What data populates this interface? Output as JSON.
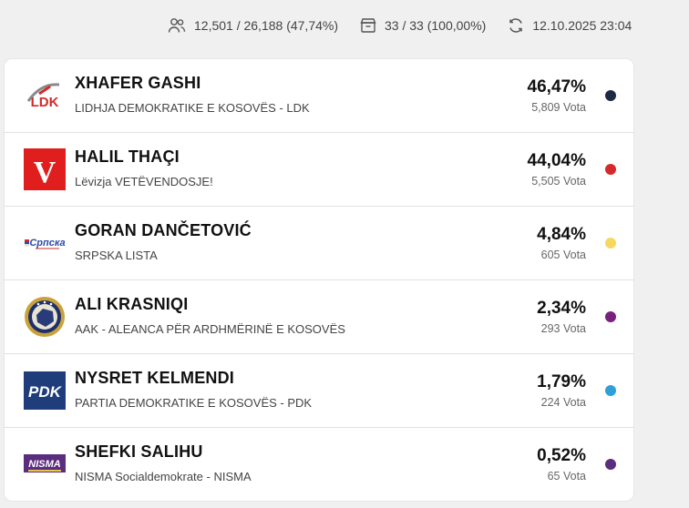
{
  "stats": {
    "voters": "12,501 / 26,188 (47,74%)",
    "stations": "33 / 33 (100,00%)",
    "updated": "12.10.2025 23:04",
    "voters_icon": "users-icon",
    "stations_icon": "ballot-box-icon",
    "updated_icon": "refresh-icon"
  },
  "candidates": [
    {
      "name": "XHAFER GASHI",
      "party": "LIDHJA DEMOKRATIKE E KOSOVËS - LDK",
      "percent": "46,47%",
      "votes": "5,809 Vota",
      "color": "#1e2a44",
      "logo_text": "LDK",
      "logo": "ldk-logo"
    },
    {
      "name": "HALIL THAÇI",
      "party": "Lëvizja VETËVENDOSJE!",
      "percent": "44,04%",
      "votes": "5,505 Vota",
      "color": "#d42a2a",
      "logo_text": "V",
      "logo": "vetevendosje-logo"
    },
    {
      "name": "GORAN DANČETOVIĆ",
      "party": "SRPSKA LISTA",
      "percent": "4,84%",
      "votes": "605 Vota",
      "color": "#f6d860",
      "logo_text": "Српска",
      "logo": "srpska-lista-logo"
    },
    {
      "name": "ALI KRASNIQI",
      "party": "AAK - ALEANCA PËR ARDHMËRINË E KOSOVËS",
      "percent": "2,34%",
      "votes": "293 Vota",
      "color": "#7a1f7e",
      "logo_text": "",
      "logo": "aak-logo"
    },
    {
      "name": "NYSRET KELMENDI",
      "party": "PARTIA DEMOKRATIKE E KOSOVËS - PDK",
      "percent": "1,79%",
      "votes": "224 Vota",
      "color": "#2f9fd8",
      "logo_text": "PDK",
      "logo": "pdk-logo"
    },
    {
      "name": "SHEFKI SALIHU",
      "party": "NISMA Socialdemokrate - NISMA",
      "percent": "0,52%",
      "votes": "65 Vota",
      "color": "#5b2d7e",
      "logo_text": "NISMA",
      "logo": "nisma-logo"
    }
  ]
}
